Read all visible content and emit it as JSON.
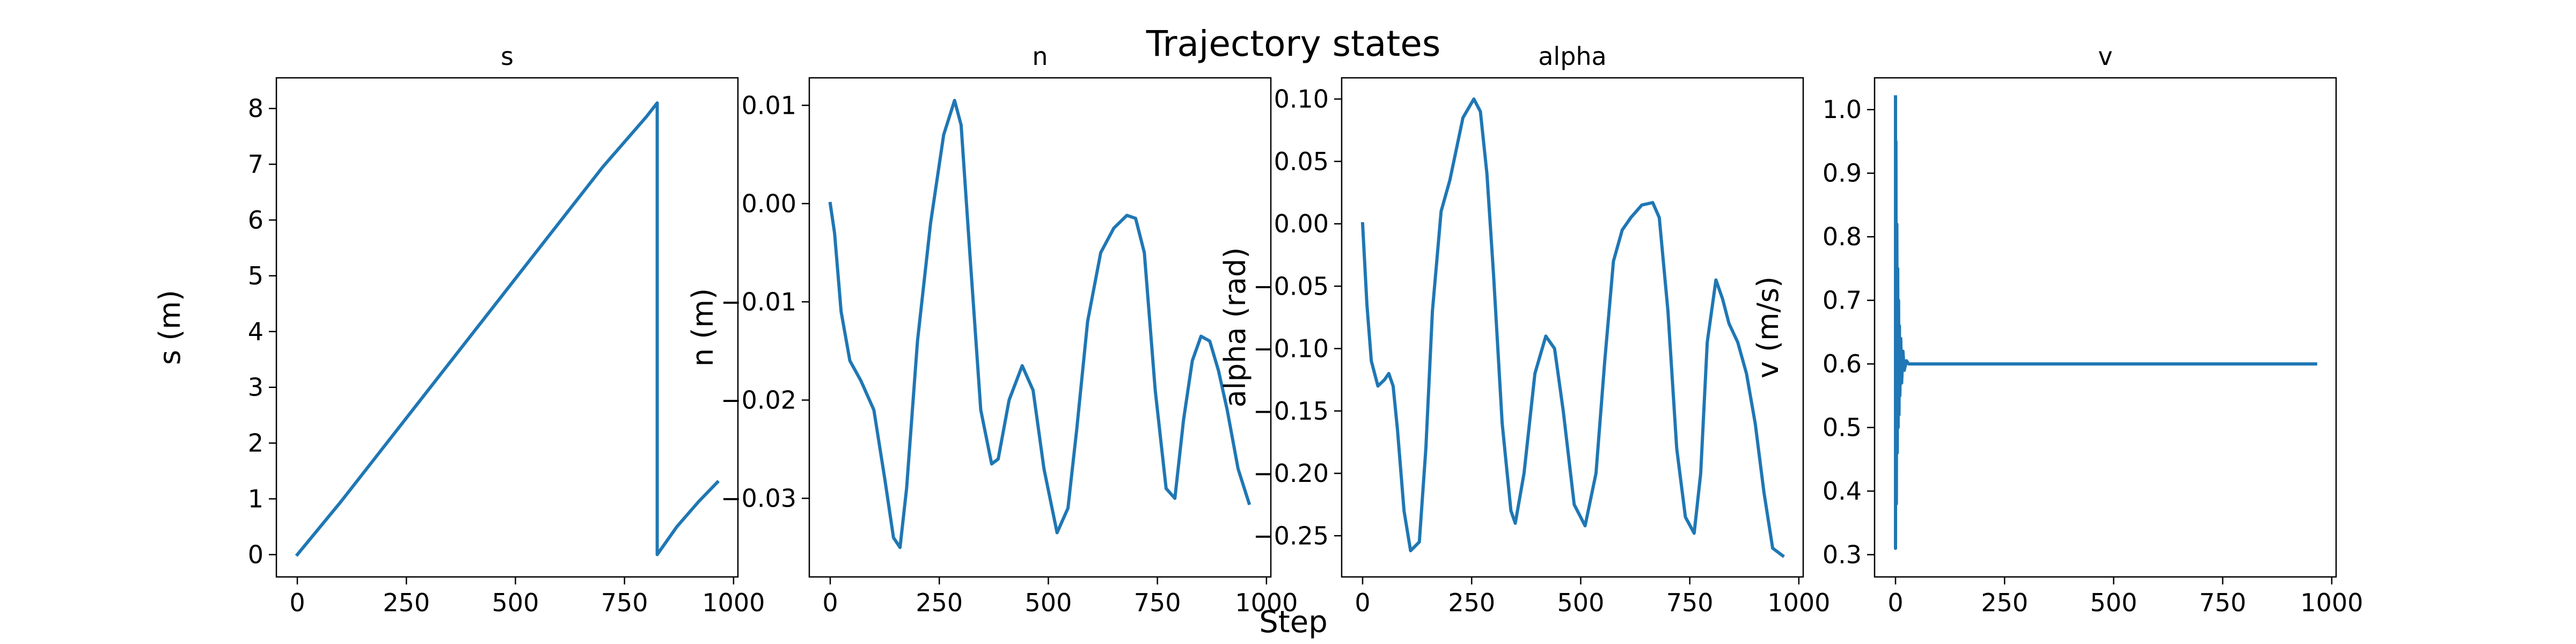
{
  "figure": {
    "suptitle": "Trajectory states",
    "supxlabel": "Step",
    "line_color": "#1f77b4"
  },
  "chart_data": [
    {
      "type": "line",
      "title": "s",
      "xlabel": "",
      "ylabel": "s (m)",
      "xlim": [
        -48,
        1010
      ],
      "ylim": [
        -0.4,
        8.55
      ],
      "xticks": [
        0,
        250,
        500,
        750,
        1000
      ],
      "yticks": [
        0,
        1,
        2,
        3,
        4,
        5,
        6,
        7,
        8
      ],
      "ytick_labels": [
        "0",
        "1",
        "2",
        "3",
        "4",
        "5",
        "6",
        "7",
        "8"
      ],
      "grid": false,
      "series": [
        {
          "x": [
            0,
            100,
            200,
            300,
            400,
            500,
            600,
            700,
            800,
            825,
            825,
            870,
            920,
            963
          ],
          "y": [
            0,
            0.95,
            1.95,
            2.95,
            3.95,
            4.95,
            5.95,
            6.95,
            7.85,
            8.1,
            0,
            0.5,
            0.95,
            1.3
          ]
        }
      ]
    },
    {
      "type": "line",
      "title": "n",
      "xlabel": "",
      "ylabel": "n (m)",
      "xlim": [
        -48,
        1010
      ],
      "ylim": [
        -0.038,
        0.0128
      ],
      "xticks": [
        0,
        250,
        500,
        750,
        1000
      ],
      "yticks": [
        0.01,
        0.0,
        -0.01,
        -0.02,
        -0.03
      ],
      "ytick_labels": [
        "0.01",
        "0.00",
        "−0.01",
        "−0.02",
        "−0.03"
      ],
      "grid": false,
      "series": [
        {
          "x": [
            0,
            10,
            25,
            45,
            70,
            100,
            125,
            145,
            160,
            175,
            200,
            230,
            260,
            285,
            300,
            320,
            345,
            370,
            385,
            410,
            440,
            465,
            490,
            520,
            545,
            565,
            590,
            620,
            650,
            680,
            700,
            720,
            745,
            770,
            790,
            810,
            830,
            850,
            870,
            890,
            910,
            935,
            960
          ],
          "y": [
            0,
            -0.003,
            -0.011,
            -0.016,
            -0.018,
            -0.021,
            -0.028,
            -0.034,
            -0.035,
            -0.029,
            -0.014,
            -0.002,
            0.007,
            0.0105,
            0.008,
            -0.005,
            -0.021,
            -0.0265,
            -0.026,
            -0.02,
            -0.0165,
            -0.019,
            -0.027,
            -0.0335,
            -0.031,
            -0.023,
            -0.012,
            -0.005,
            -0.0025,
            -0.0012,
            -0.0015,
            -0.005,
            -0.019,
            -0.029,
            -0.03,
            -0.022,
            -0.016,
            -0.0135,
            -0.014,
            -0.017,
            -0.021,
            -0.027,
            -0.0305
          ]
        }
      ]
    },
    {
      "type": "line",
      "title": "alpha",
      "xlabel": "",
      "ylabel": "alpha (rad)",
      "xlim": [
        -48,
        1010
      ],
      "ylim": [
        -0.283,
        0.117
      ],
      "xticks": [
        0,
        250,
        500,
        750,
        1000
      ],
      "yticks": [
        0.1,
        0.05,
        0.0,
        -0.05,
        -0.1,
        -0.15,
        -0.2,
        -0.25
      ],
      "ytick_labels": [
        "0.10",
        "0.05",
        "0.00",
        "−0.05",
        "−0.10",
        "−0.15",
        "−0.20",
        "−0.25"
      ],
      "grid": false,
      "series": [
        {
          "x": [
            0,
            10,
            20,
            35,
            50,
            60,
            70,
            80,
            95,
            110,
            130,
            145,
            160,
            180,
            200,
            230,
            255,
            270,
            285,
            300,
            320,
            340,
            350,
            370,
            395,
            420,
            440,
            460,
            485,
            510,
            535,
            555,
            575,
            595,
            615,
            640,
            665,
            680,
            700,
            720,
            740,
            760,
            775,
            790,
            810,
            825,
            840,
            860,
            880,
            900,
            920,
            940,
            963
          ],
          "y": [
            0,
            -0.065,
            -0.11,
            -0.13,
            -0.125,
            -0.12,
            -0.13,
            -0.165,
            -0.23,
            -0.262,
            -0.255,
            -0.18,
            -0.07,
            0.01,
            0.035,
            0.085,
            0.1,
            0.09,
            0.04,
            -0.04,
            -0.16,
            -0.23,
            -0.24,
            -0.2,
            -0.12,
            -0.09,
            -0.1,
            -0.15,
            -0.225,
            -0.242,
            -0.2,
            -0.11,
            -0.03,
            -0.005,
            0.005,
            0.015,
            0.017,
            0.005,
            -0.07,
            -0.18,
            -0.235,
            -0.248,
            -0.2,
            -0.095,
            -0.045,
            -0.06,
            -0.08,
            -0.095,
            -0.12,
            -0.16,
            -0.215,
            -0.26,
            -0.266
          ]
        }
      ]
    },
    {
      "type": "line",
      "title": "v",
      "xlabel": "",
      "ylabel": "v (m/s)",
      "xlim": [
        -48,
        1010
      ],
      "ylim": [
        0.265,
        1.05
      ],
      "xticks": [
        0,
        250,
        500,
        750,
        1000
      ],
      "yticks": [
        1.0,
        0.9,
        0.8,
        0.7,
        0.6,
        0.5,
        0.4,
        0.3
      ],
      "ytick_labels": [
        "1.0",
        "0.9",
        "0.8",
        "0.7",
        "0.6",
        "0.5",
        "0.4",
        "0.3"
      ],
      "grid": false,
      "series": [
        {
          "x": [
            0,
            0,
            1,
            2,
            3,
            4,
            5,
            6,
            7,
            8,
            9,
            10,
            12,
            14,
            17,
            20,
            25,
            30,
            60,
            963
          ],
          "y": [
            1.02,
            0.31,
            0.95,
            0.38,
            0.82,
            0.46,
            0.75,
            0.5,
            0.7,
            0.52,
            0.66,
            0.55,
            0.64,
            0.57,
            0.62,
            0.59,
            0.605,
            0.6,
            0.6,
            0.6
          ]
        }
      ]
    }
  ]
}
